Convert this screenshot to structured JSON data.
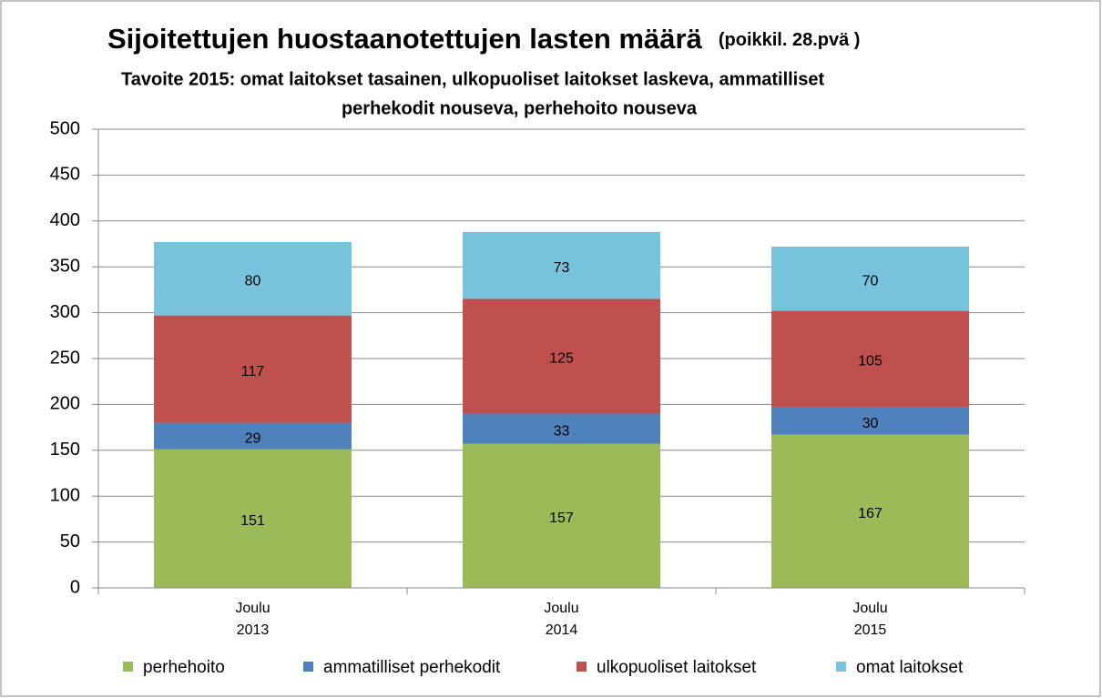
{
  "chart_data": {
    "type": "stacked_bar",
    "title": "Sijoitettujen huostaanotettujen lasten määrä",
    "title_note": "(poikkil. 28.pvä )",
    "subtitle": [
      "Tavoite 2015:  omat laitokset tasainen, ulkopuoliset laitokset laskeva, ammatilliset",
      "perhekodit nouseva, perhehoito nouseva"
    ],
    "categories": [
      [
        "Joulu",
        "2013"
      ],
      [
        "Joulu",
        "2014"
      ],
      [
        "Joulu",
        "2015"
      ]
    ],
    "series": [
      {
        "name": "perhehoito",
        "color": "#9bbb59",
        "values": [
          151,
          157,
          167
        ]
      },
      {
        "name": "ammatilliset perhekodit",
        "color": "#4f81bd",
        "values": [
          29,
          33,
          30
        ]
      },
      {
        "name": "ulkopuoliset laitokset",
        "color": "#c0504d",
        "values": [
          117,
          125,
          105
        ]
      },
      {
        "name": "omat laitokset",
        "color": "#77c3dd",
        "values": [
          80,
          73,
          70
        ]
      }
    ],
    "ylim": [
      0,
      500
    ],
    "yticks": [
      0,
      50,
      100,
      150,
      200,
      250,
      300,
      350,
      400,
      450,
      500
    ],
    "grid": true,
    "legend": "bottom"
  }
}
